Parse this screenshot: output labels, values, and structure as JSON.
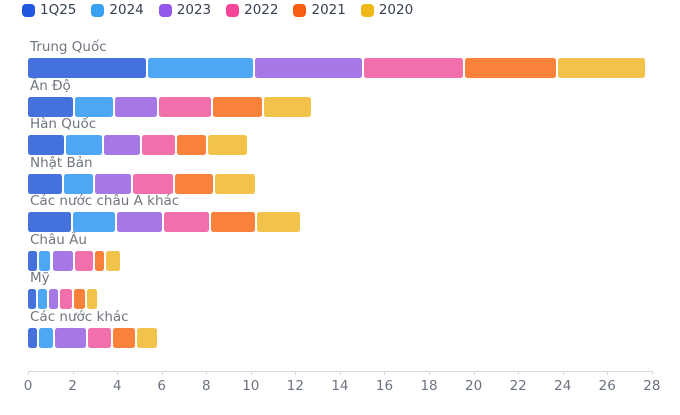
{
  "chart_data": {
    "type": "bar",
    "orientation": "horizontal",
    "stacked": true,
    "title": "",
    "xlabel": "",
    "ylabel": "",
    "xlim": [
      0,
      28
    ],
    "x_ticks": [
      0,
      2,
      4,
      6,
      8,
      10,
      12,
      14,
      16,
      18,
      20,
      22,
      24,
      26,
      28
    ],
    "grid": false,
    "legend_position": "top-left",
    "categories": [
      "Trung Quốc",
      "Ấn Độ",
      "Hàn Quốc",
      "Nhật Bản",
      "Các nước châu Á khác",
      "Châu Âu",
      "Mỹ",
      "Các nước khác"
    ],
    "series": [
      {
        "name": "1Q25",
        "legend_color": "#2257e0",
        "bar_color": "#4471db",
        "values": [
          5.4,
          2.1,
          1.7,
          1.6,
          2.0,
          0.5,
          0.45,
          0.5
        ]
      },
      {
        "name": "2024",
        "legend_color": "#38a1f2",
        "bar_color": "#4da7f5",
        "values": [
          4.8,
          1.8,
          1.7,
          1.4,
          2.0,
          0.6,
          0.5,
          0.7
        ]
      },
      {
        "name": "2023",
        "legend_color": "#9357ea",
        "bar_color": "#a678e6",
        "values": [
          4.9,
          2.0,
          1.7,
          1.7,
          2.1,
          1.0,
          0.5,
          1.5
        ]
      },
      {
        "name": "2022",
        "legend_color": "#f5459b",
        "bar_color": "#f170ab",
        "values": [
          4.5,
          2.4,
          1.6,
          1.9,
          2.1,
          0.9,
          0.6,
          1.1
        ]
      },
      {
        "name": "2021",
        "legend_color": "#f75e11",
        "bar_color": "#f9813a",
        "values": [
          4.2,
          2.3,
          1.4,
          1.8,
          2.1,
          0.5,
          0.6,
          1.1
        ]
      },
      {
        "name": "2020",
        "legend_color": "#eeb816",
        "bar_color": "#f2c34a",
        "values": [
          4.0,
          2.2,
          1.8,
          1.9,
          2.0,
          0.7,
          0.55,
          1.0
        ]
      }
    ],
    "colors": {
      "category_label": "#70757e",
      "legend_label": "#374151",
      "axis_label": "#6b7280",
      "axis_line": "#d7dadf",
      "background": "#ffffff"
    }
  }
}
